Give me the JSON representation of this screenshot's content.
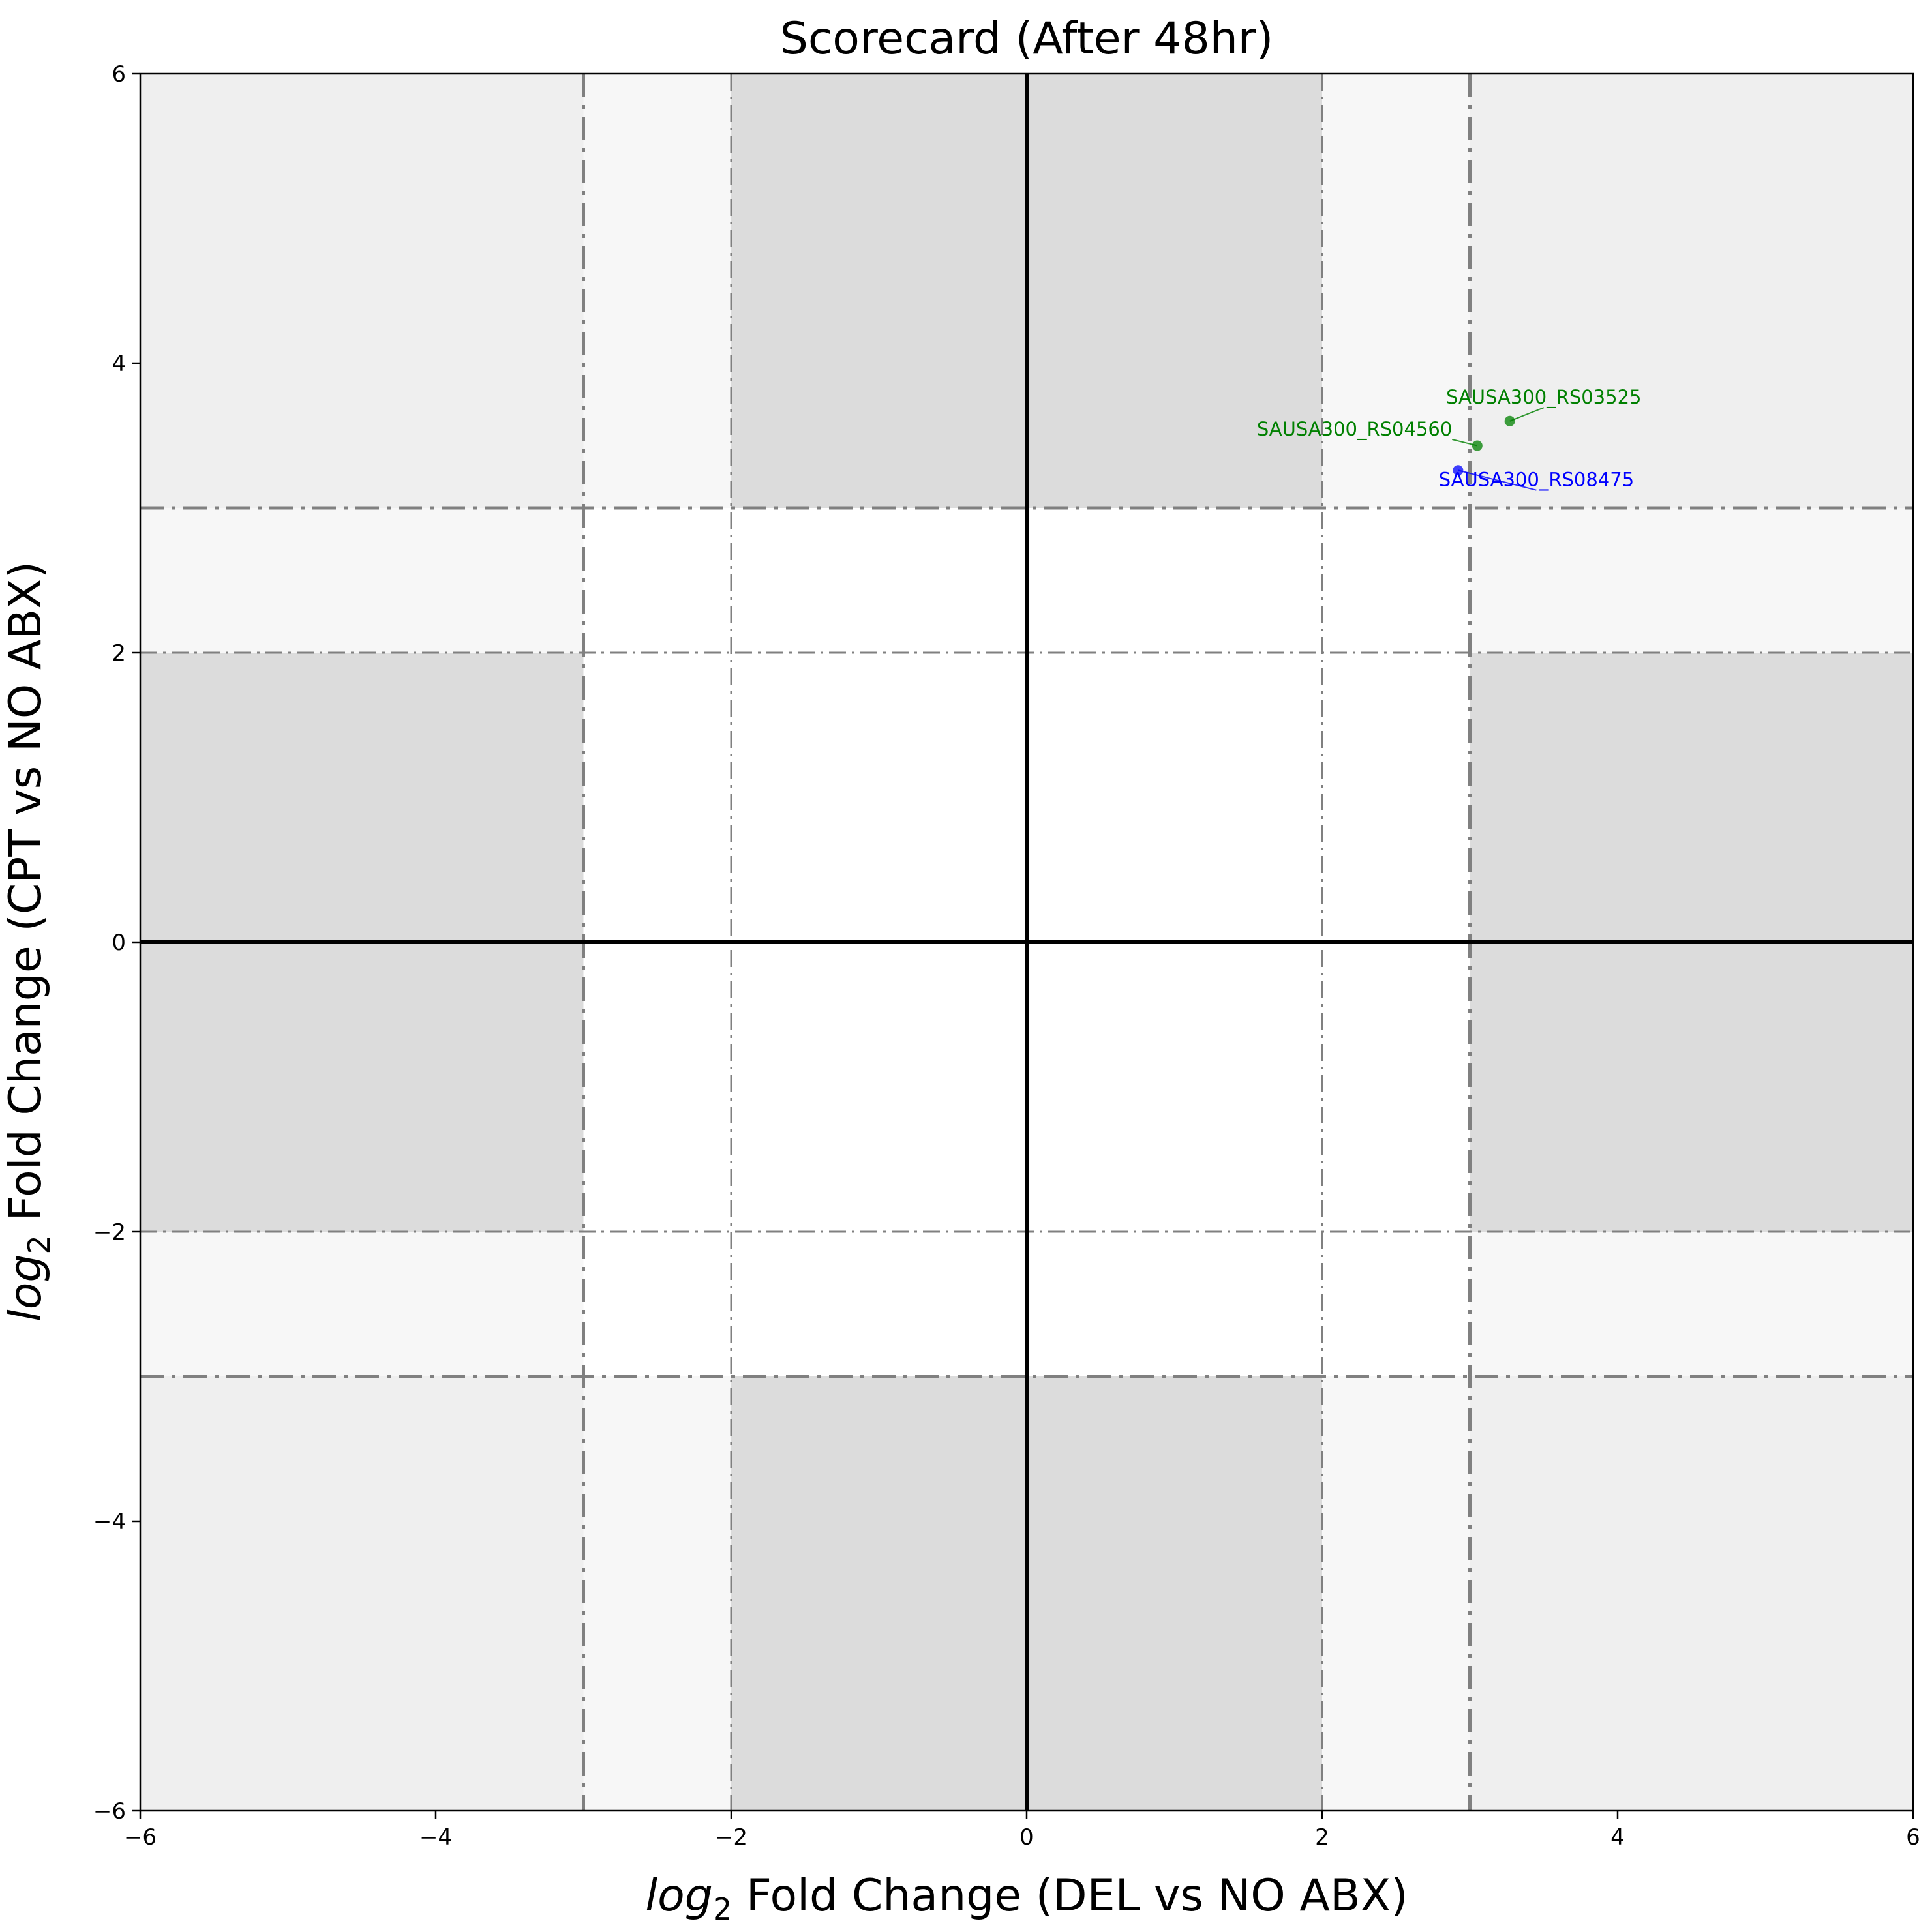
{
  "chart_data": {
    "type": "scatter",
    "title": "Scorecard (After 48hr)",
    "xlabel_prefix": "log",
    "xlabel_sub": "2",
    "xlabel_text": " Fold Change (DEL vs NO ABX)",
    "ylabel_prefix": "log",
    "ylabel_sub": "2",
    "ylabel_text": " Fold Change (CPT vs NO ABX)",
    "xlim": [
      -6,
      6
    ],
    "ylim": [
      -6,
      6
    ],
    "xticks": [
      -6,
      -4,
      -2,
      0,
      2,
      4,
      6
    ],
    "yticks": [
      -6,
      -4,
      -2,
      0,
      2,
      4,
      6
    ],
    "xtick_labels": [
      "−6",
      "−4",
      "−2",
      "0",
      "2",
      "4",
      "6"
    ],
    "ytick_labels": [
      "−6",
      "−4",
      "−2",
      "0",
      "2",
      "4",
      "6"
    ],
    "grid": false,
    "regions": [
      {
        "x": [
          -6,
          6
        ],
        "y": [
          -6,
          6
        ],
        "color": "#f7f7f7"
      },
      {
        "x": [
          -6,
          -3
        ],
        "y": [
          3,
          6
        ],
        "color": "#efefef"
      },
      {
        "x": [
          3,
          6
        ],
        "y": [
          3,
          6
        ],
        "color": "#efefef"
      },
      {
        "x": [
          -6,
          -3
        ],
        "y": [
          -6,
          -3
        ],
        "color": "#efefef"
      },
      {
        "x": [
          3,
          6
        ],
        "y": [
          -6,
          -3
        ],
        "color": "#efefef"
      },
      {
        "x": [
          -2,
          2
        ],
        "y": [
          3,
          6
        ],
        "color": "#dcdcdc"
      },
      {
        "x": [
          -2,
          2
        ],
        "y": [
          -6,
          -3
        ],
        "color": "#dcdcdc"
      },
      {
        "x": [
          -6,
          -3
        ],
        "y": [
          -2,
          2
        ],
        "color": "#dcdcdc"
      },
      {
        "x": [
          3,
          6
        ],
        "y": [
          -2,
          2
        ],
        "color": "#dcdcdc"
      },
      {
        "x": [
          -3,
          3
        ],
        "y": [
          -3,
          3
        ],
        "color": "#ffffff"
      }
    ],
    "threshold_lines": {
      "color": "#808080",
      "strong": [
        -3,
        3
      ],
      "weak": [
        -2,
        2
      ]
    },
    "points": [
      {
        "label": "SAUSA300_RS03525",
        "x": 3.27,
        "y": 3.6,
        "color": "#008000",
        "label_x": 3.5,
        "label_y": 3.72,
        "anchor": "middle"
      },
      {
        "label": "SAUSA300_RS04560",
        "x": 3.05,
        "y": 3.43,
        "color": "#008000",
        "label_x": 2.88,
        "label_y": 3.5,
        "anchor": "end"
      },
      {
        "label": "SAUSA300_RS08475",
        "x": 2.92,
        "y": 3.26,
        "color": "#0000ff",
        "label_x": 3.45,
        "label_y": 3.15,
        "anchor": "middle"
      }
    ]
  }
}
